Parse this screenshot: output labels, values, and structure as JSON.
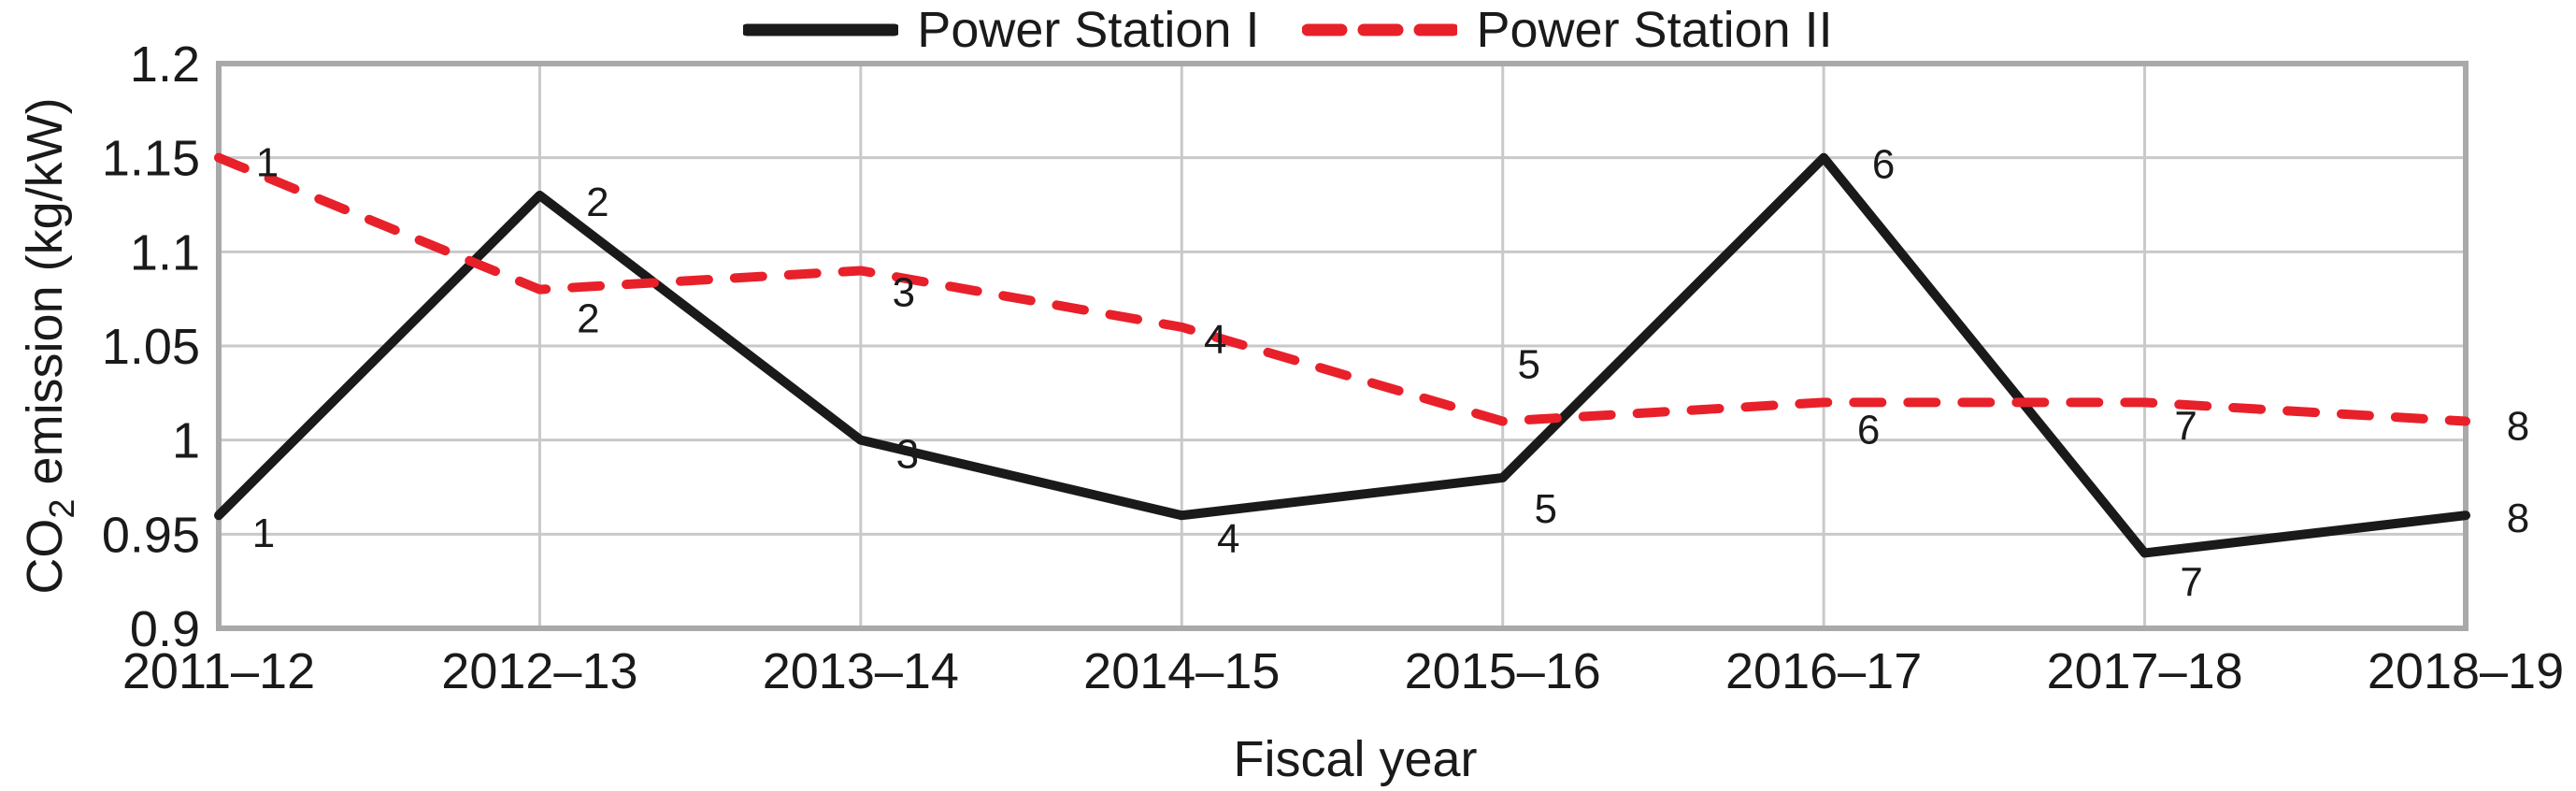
{
  "figure": {
    "background": "#ffffff",
    "text_color": "#1a1a1a",
    "grid_color": "#c9c9c9",
    "frame_color": "#a9a9a9"
  },
  "legend": {
    "items": [
      {
        "label": "Power Station I"
      },
      {
        "label": "Power Station II"
      }
    ]
  },
  "chart_data": {
    "type": "line",
    "title": "",
    "xlabel": "Fiscal year",
    "ylabel_parts": {
      "pre": "CO",
      "sub": "2",
      "post": " emission (kg/kW)"
    },
    "categories": [
      "2011–12",
      "2012–13",
      "2013–14",
      "2014–15",
      "2015–16",
      "2016–17",
      "2017–18",
      "2018–19"
    ],
    "y_tick_values": [
      1.2,
      1.15,
      1.1,
      1.05,
      1,
      0.95,
      0.9
    ],
    "y_tick_labels": [
      "1.2",
      "1.15",
      "1.1",
      "1.05",
      "1",
      "0.95",
      "0.9"
    ],
    "ylim": [
      0.9,
      1.2
    ],
    "grid": true,
    "legend_position": "top-center",
    "series": [
      {
        "name": "Power Station I",
        "color": "#1a1a1a",
        "style": "solid",
        "values": [
          0.96,
          1.13,
          1.0,
          0.96,
          0.98,
          1.15,
          0.94,
          0.96
        ],
        "point_labels": [
          "1",
          "2",
          "3",
          "4",
          "5",
          "6",
          "7",
          "8"
        ],
        "label_offsets": [
          [
            48,
            34
          ],
          [
            62,
            22
          ],
          [
            50,
            30
          ],
          [
            50,
            40
          ],
          [
            46,
            48
          ],
          [
            64,
            22
          ],
          [
            50,
            46
          ],
          [
            56,
            18
          ]
        ]
      },
      {
        "name": "Power Station II",
        "color": "#e8202a",
        "style": "dashed",
        "values": [
          1.15,
          1.08,
          1.09,
          1.06,
          1.01,
          1.02,
          1.02,
          1.01
        ],
        "point_labels": [
          "1",
          "2",
          "3",
          "4",
          "5",
          "6",
          "7",
          "8"
        ],
        "label_offsets": [
          [
            52,
            20
          ],
          [
            52,
            46
          ],
          [
            46,
            38
          ],
          [
            36,
            28
          ],
          [
            28,
            -46
          ],
          [
            48,
            44
          ],
          [
            44,
            40
          ],
          [
            56,
            20
          ]
        ]
      }
    ]
  }
}
